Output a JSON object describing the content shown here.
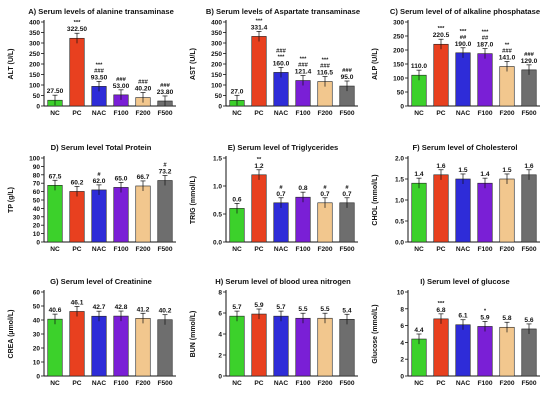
{
  "categories": [
    "NC",
    "PC",
    "NAC",
    "F100",
    "F200",
    "F500"
  ],
  "colors": [
    "#3cd12b",
    "#e8401f",
    "#2e2cd8",
    "#7a1fd6",
    "#f2c78e",
    "#6e6e6e"
  ],
  "chart_data": [
    {
      "type": "bar",
      "title": "A) Serum levels of alanine transaminase",
      "ylabel": "ALT (U/L)",
      "ylim": [
        0,
        400
      ],
      "ticks": [
        0,
        50,
        100,
        150,
        200,
        250,
        300,
        350,
        400
      ],
      "categories": [
        "NC",
        "PC",
        "NAC",
        "F100",
        "F200",
        "F500"
      ],
      "values": [
        27.5,
        322.5,
        93.5,
        53.0,
        40.2,
        23.8
      ],
      "labels": [
        "27.50",
        "322.50",
        "93.50",
        "53.00",
        "40.20",
        "23.80"
      ],
      "sig": [
        "",
        "***",
        "***\n###",
        "###",
        "###",
        "###"
      ]
    },
    {
      "type": "bar",
      "title": "B) Serum levels of Aspartate transaminase",
      "ylabel": "AST (U/L)",
      "ylim": [
        0,
        400
      ],
      "ticks": [
        0,
        50,
        100,
        150,
        200,
        250,
        300,
        350,
        400
      ],
      "categories": [
        "NC",
        "PC",
        "NAC",
        "F100",
        "F200",
        "F500"
      ],
      "values": [
        27.0,
        331.4,
        160.0,
        121.4,
        116.5,
        95.0
      ],
      "labels": [
        "27.0",
        "331.4",
        "160.0",
        "121.4",
        "116.5",
        "95.0"
      ],
      "sig": [
        "",
        "***",
        "###\n***",
        "***\n###",
        "***\n###",
        "###"
      ]
    },
    {
      "type": "bar",
      "title": "C) Serum level of of alkaline phosphatase",
      "ylabel": "ALP (U/L)",
      "ylim": [
        0,
        300
      ],
      "ticks": [
        0,
        50,
        100,
        150,
        200,
        250,
        300
      ],
      "categories": [
        "NC",
        "PC",
        "NAC",
        "F100",
        "F200",
        "F500"
      ],
      "values": [
        110.0,
        220.5,
        190.0,
        187.0,
        141.0,
        129.0
      ],
      "labels": [
        "110.0",
        "220.5",
        "190.0",
        "187.0",
        "141.0",
        "129.0"
      ],
      "sig": [
        "",
        "***",
        "***\n##",
        "***\n##",
        "**\n###",
        "###"
      ]
    },
    {
      "type": "bar",
      "title": "D) Serum level Total Protein",
      "ylabel": "TP (g/L)",
      "ylim": [
        0,
        100
      ],
      "ticks": [
        0,
        10,
        20,
        30,
        40,
        50,
        60,
        70,
        80,
        90,
        100
      ],
      "categories": [
        "NC",
        "PC",
        "NAC",
        "F100",
        "F200",
        "F500"
      ],
      "values": [
        67.5,
        60.2,
        62.0,
        65.0,
        66.7,
        73.2
      ],
      "labels": [
        "67.5",
        "60.2",
        "62.0",
        "65.0",
        "66.7",
        "73.2"
      ],
      "sig": [
        "",
        "",
        "#",
        "",
        "",
        "#"
      ]
    },
    {
      "type": "bar",
      "title": "E) Serum level of Triglycerides",
      "ylabel": "TRIG (mmol/L)",
      "ylim": [
        0,
        1.5
      ],
      "ticks": [
        0.0,
        0.5,
        1.0,
        1.5
      ],
      "categories": [
        "NC",
        "PC",
        "NAC",
        "F100",
        "F200",
        "F500"
      ],
      "values": [
        0.6,
        1.2,
        0.7,
        0.8,
        0.7,
        0.7
      ],
      "labels": [
        "0.6",
        "1.2",
        "0.7",
        "0.8",
        "0.7",
        "0.7"
      ],
      "sig": [
        "",
        "**",
        "#",
        "",
        "#",
        "#"
      ]
    },
    {
      "type": "bar",
      "title": "F) Serum level of Cholesterol",
      "ylabel": "CHOL (mmol/L)",
      "ylim": [
        0,
        2.0
      ],
      "ticks": [
        0.0,
        0.5,
        1.0,
        1.5,
        2.0
      ],
      "categories": [
        "NC",
        "PC",
        "NAC",
        "F100",
        "F200",
        "F500"
      ],
      "values": [
        1.4,
        1.6,
        1.5,
        1.4,
        1.5,
        1.6
      ],
      "labels": [
        "1.4",
        "1.6",
        "1.5",
        "1.4",
        "1.5",
        "1.6"
      ],
      "sig": [
        "",
        "",
        "",
        "",
        "",
        ""
      ]
    },
    {
      "type": "bar",
      "title": "G) Serum level of Creatinine",
      "ylabel": "CREA (µmol/L)",
      "ylim": [
        0,
        60
      ],
      "ticks": [
        0,
        10,
        20,
        30,
        40,
        50,
        60
      ],
      "categories": [
        "NC",
        "PC",
        "NAC",
        "F100",
        "F200",
        "F500"
      ],
      "values": [
        40.6,
        46.1,
        42.7,
        42.8,
        41.2,
        40.2
      ],
      "labels": [
        "40.6",
        "46.1",
        "42.7",
        "42.8",
        "41.2",
        "40.2"
      ],
      "sig": [
        "",
        "",
        "",
        "",
        "",
        ""
      ]
    },
    {
      "type": "bar",
      "title": "H) Serum level of blood urea nitrogen",
      "ylabel": "BUN (mmol/L)",
      "ylim": [
        0,
        8
      ],
      "ticks": [
        0,
        2,
        4,
        6,
        8
      ],
      "categories": [
        "NC",
        "PC",
        "NAC",
        "F100",
        "F200",
        "F500"
      ],
      "values": [
        5.7,
        5.9,
        5.7,
        5.5,
        5.5,
        5.4
      ],
      "labels": [
        "5.7",
        "5.9",
        "5.7",
        "5.5",
        "5.5",
        "5.4"
      ],
      "sig": [
        "",
        "",
        "",
        "",
        "",
        ""
      ]
    },
    {
      "type": "bar",
      "title": "I) Serum level of glucose",
      "ylabel": "Glucose (mmol/L)",
      "ylim": [
        0,
        10
      ],
      "ticks": [
        0,
        2,
        4,
        6,
        8,
        10
      ],
      "categories": [
        "NC",
        "PC",
        "NAC",
        "F100",
        "F200",
        "F500"
      ],
      "values": [
        4.4,
        6.8,
        6.1,
        5.9,
        5.8,
        5.6
      ],
      "labels": [
        "4.4",
        "6.8",
        "6.1",
        "5.9",
        "5.8",
        "5.6"
      ],
      "sig": [
        "",
        "***",
        "",
        "*",
        "",
        ""
      ]
    }
  ]
}
